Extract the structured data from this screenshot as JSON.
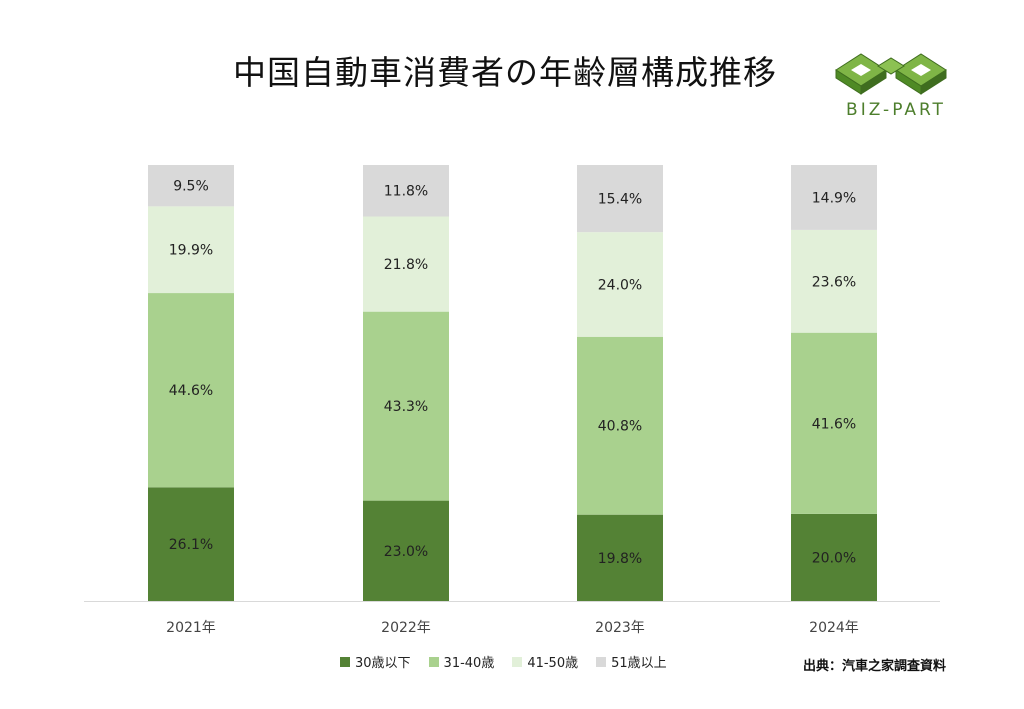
{
  "header": {
    "title": "中国自動車消費者の年齢層構成推移",
    "logo_text": "BIZ-PART",
    "logo_icon": "infinity-cube-logo"
  },
  "colors": {
    "under30": "#548235",
    "age31_40": "#a9d18e",
    "age41_50": "#e2f0d9",
    "over51": "#d9d9d9",
    "axis": "#d9d9d9",
    "logo": "#6aa333"
  },
  "chart_data": {
    "type": "bar",
    "stacked": true,
    "title": "中国自動車消費者の年齢層構成推移",
    "categories": [
      "2021年",
      "2022年",
      "2023年",
      "2024年"
    ],
    "series": [
      {
        "name": "30歳以下",
        "values": [
          26.1,
          23.0,
          19.8,
          20.0
        ],
        "labels": [
          "26.1%",
          "23.0%",
          "19.8%",
          "20.0%"
        ]
      },
      {
        "name": "31-40歳",
        "values": [
          44.6,
          43.3,
          40.8,
          41.6
        ],
        "labels": [
          "44.6%",
          "43.3%",
          "40.8%",
          "41.6%"
        ]
      },
      {
        "name": "41-50歳",
        "values": [
          19.9,
          21.8,
          24.0,
          23.6
        ],
        "labels": [
          "19.9%",
          "21.8%",
          "24.0%",
          "23.6%"
        ]
      },
      {
        "name": "51歳以上",
        "values": [
          9.5,
          11.8,
          15.4,
          14.9
        ],
        "labels": [
          "9.5%",
          "11.8%",
          "15.4%",
          "14.9%"
        ]
      }
    ],
    "ylim": [
      0,
      100
    ],
    "legend_position": "bottom",
    "grid": false
  },
  "source_note": "出典：汽車之家調査資料"
}
